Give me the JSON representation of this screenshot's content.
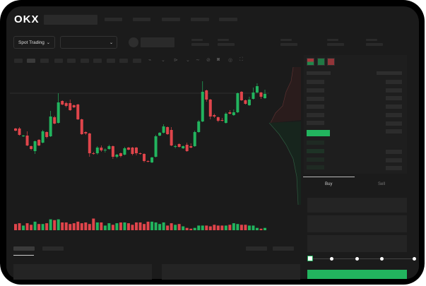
{
  "header": {
    "logo": "OKX"
  },
  "toolbar": {
    "market_button": "Spot Trading",
    "pair_dropdown_icon": "chevron-down-icon"
  },
  "orderbook": {
    "view_icons": [
      "orderbook-both-icon",
      "orderbook-bids-icon",
      "orderbook-asks-icon"
    ]
  },
  "trade": {
    "tabs": [
      {
        "label": "Buy",
        "active": true
      },
      {
        "label": "Sell",
        "active": false
      }
    ],
    "slider_percent": 0
  },
  "colors": {
    "up": "#22b45e",
    "down": "#e0454b",
    "background": "#1b1b1b",
    "panel": "#1e1e1e"
  },
  "chart_data": {
    "type": "candlestick",
    "ylim": [
      0,
      140
    ],
    "candles": [
      [
        58,
        55,
        59,
        54
      ],
      [
        58,
        49,
        60,
        48
      ],
      [
        47,
        48,
        49,
        46
      ],
      [
        48,
        34,
        54,
        33
      ],
      [
        33,
        29,
        34,
        27
      ],
      [
        26,
        40,
        41,
        22
      ],
      [
        42,
        34,
        43,
        33
      ],
      [
        38,
        54,
        56,
        37
      ],
      [
        53,
        46,
        54,
        44
      ],
      [
        47,
        75,
        83,
        46
      ],
      [
        74,
        65,
        76,
        64
      ],
      [
        66,
        95,
        108,
        65
      ],
      [
        97,
        92,
        98,
        91
      ],
      [
        94,
        90,
        96,
        88
      ],
      [
        94,
        84,
        99,
        83
      ],
      [
        91,
        88,
        92,
        87
      ],
      [
        92,
        71,
        93,
        70
      ],
      [
        71,
        50,
        72,
        49
      ],
      [
        53,
        51,
        54,
        49
      ],
      [
        51,
        23,
        52,
        18
      ],
      [
        23,
        22,
        25,
        21
      ],
      [
        23,
        31,
        33,
        21
      ],
      [
        31,
        27,
        34,
        25
      ],
      [
        27,
        28,
        30,
        24
      ],
      [
        29,
        33,
        35,
        28
      ],
      [
        33,
        18,
        34,
        15
      ],
      [
        18,
        21,
        22,
        16
      ],
      [
        23,
        19,
        24,
        17
      ],
      [
        21,
        30,
        32,
        20
      ],
      [
        31,
        28,
        32,
        27
      ],
      [
        31,
        22,
        32,
        20
      ],
      [
        31,
        23,
        32,
        20
      ],
      [
        23,
        22,
        24,
        21
      ],
      [
        22,
        12,
        23,
        10
      ],
      [
        12,
        11,
        13,
        10
      ],
      [
        10,
        17,
        18,
        9
      ],
      [
        18,
        47,
        49,
        17
      ],
      [
        48,
        52,
        53,
        47
      ],
      [
        52,
        61,
        64,
        51
      ],
      [
        60,
        50,
        61,
        49
      ],
      [
        56,
        34,
        60,
        33
      ],
      [
        32,
        33,
        35,
        30
      ],
      [
        36,
        32,
        37,
        31
      ],
      [
        30,
        33,
        34,
        29
      ],
      [
        35,
        26,
        38,
        25
      ],
      [
        33,
        31,
        37,
        30
      ],
      [
        33,
        53,
        55,
        32
      ],
      [
        53,
        68,
        70,
        52
      ],
      [
        68,
        110,
        125,
        67
      ],
      [
        112,
        99,
        113,
        96
      ],
      [
        99,
        75,
        100,
        71
      ],
      [
        77,
        75,
        79,
        73
      ],
      [
        74,
        69,
        75,
        67
      ],
      [
        70,
        69,
        73,
        68
      ],
      [
        66,
        79,
        81,
        65
      ],
      [
        81,
        79,
        84,
        78
      ],
      [
        77,
        81,
        85,
        76
      ],
      [
        81,
        108,
        109,
        80
      ],
      [
        110,
        98,
        111,
        97
      ],
      [
        98,
        93,
        99,
        92
      ],
      [
        91,
        99,
        103,
        90
      ],
      [
        100,
        109,
        116,
        99
      ],
      [
        109,
        118,
        122,
        108
      ],
      [
        109,
        103,
        110,
        100
      ],
      [
        101,
        107,
        113,
        100
      ]
    ],
    "volume": [
      8,
      9,
      6,
      9,
      7,
      11,
      8,
      8,
      9,
      14,
      13,
      14,
      10,
      10,
      8,
      9,
      11,
      9,
      10,
      8,
      15,
      10,
      10,
      6,
      9,
      7,
      9,
      10,
      10,
      9,
      7,
      10,
      10,
      8,
      11,
      11,
      10,
      8,
      10,
      6,
      9,
      7,
      8,
      5,
      3,
      2,
      3,
      6,
      6,
      6,
      5,
      7,
      6,
      6,
      6,
      7,
      9,
      8,
      7,
      7,
      6,
      6,
      3,
      2,
      3
    ],
    "reference_price": 108
  }
}
